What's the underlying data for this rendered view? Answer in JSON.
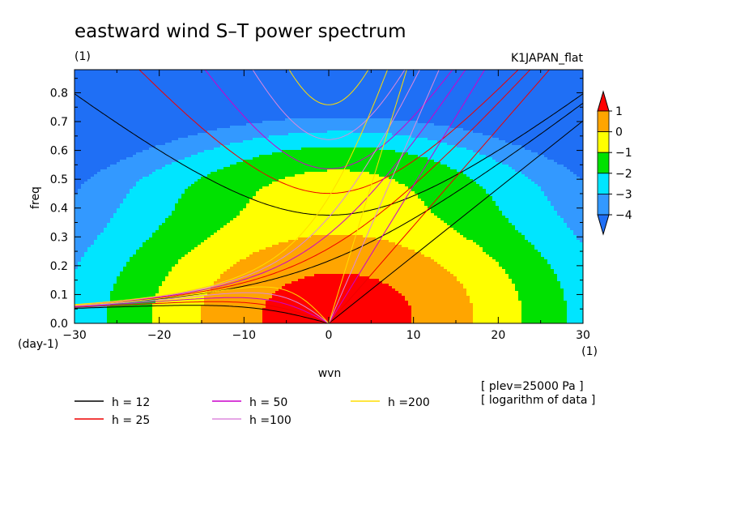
{
  "chart_data": {
    "type": "heatmap",
    "title": "eastward wind S–T power spectrum",
    "subtitle_left": "(1)",
    "subtitle_right": "K1JAPAN_flat",
    "xlabel": "wvn",
    "ylabel": "freq",
    "x_unit": "(1)",
    "y_unit": "(day-1)",
    "xlim": [
      -30,
      30
    ],
    "ylim": [
      0,
      0.88
    ],
    "x_ticks": [
      -30,
      -20,
      -10,
      0,
      10,
      20,
      30
    ],
    "y_ticks": [
      0.0,
      0.1,
      0.2,
      0.3,
      0.4,
      0.5,
      0.6,
      0.7,
      0.8
    ],
    "colorbar": {
      "labels": [
        "1",
        "0",
        "−1",
        "−2",
        "−3",
        "−4"
      ],
      "levels": [
        -5,
        -4,
        -3,
        -2,
        -1,
        0,
        1,
        2
      ],
      "colors": [
        "#1f6ff5",
        "#3399ff",
        "#00e5ff",
        "#00e100",
        "#ffff00",
        "#ffa500",
        "#ff0000"
      ]
    },
    "notes": [
      "[ plev=25000 Pa ]",
      "[ logarithm of data ]"
    ],
    "legend": [
      {
        "label": "h = 12",
        "color": "#000000",
        "h": 12
      },
      {
        "label": "h = 25",
        "color": "#ee0000",
        "h": 25
      },
      {
        "label": "h = 50",
        "color": "#cc00cc",
        "h": 50
      },
      {
        "label": "h =100",
        "color": "#dd88dd",
        "h": 100
      },
      {
        "label": "h =200",
        "color": "#ffdd00",
        "h": 200
      }
    ]
  }
}
